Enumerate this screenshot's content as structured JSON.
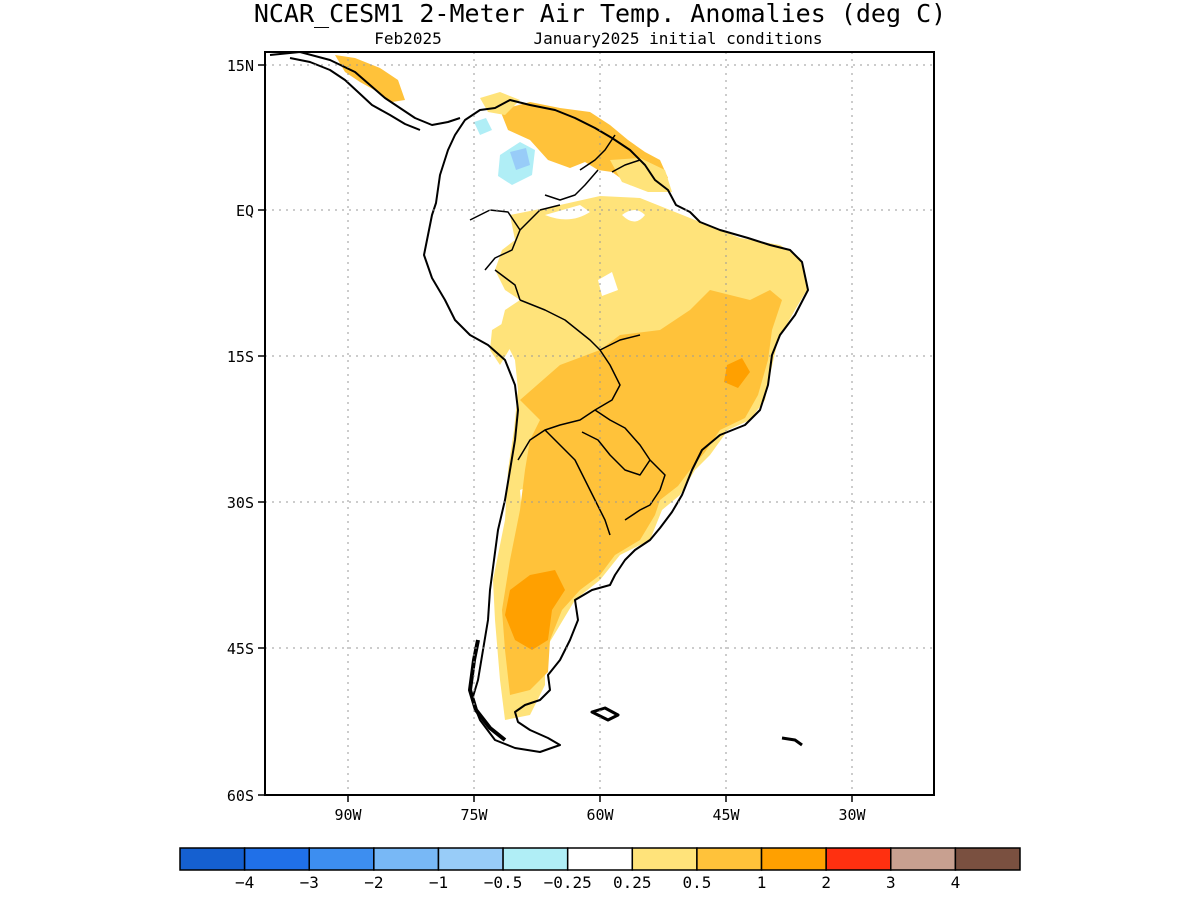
{
  "map": {
    "title": "NCAR_CESM1 2-Meter Air Temp. Anomalies (deg C)",
    "forecast_month": "Feb2025",
    "initial_conditions": "January2025 initial conditions",
    "region": "South America",
    "units": "deg C",
    "lat_ticks": [
      "15N",
      "EQ",
      "15S",
      "30S",
      "45S",
      "60S"
    ],
    "lon_ticks": [
      "90W",
      "75W",
      "60W",
      "45W",
      "30W"
    ],
    "extent": {
      "lon_min": -100,
      "lon_max": -20,
      "lat_min": -60,
      "lat_max": 16
    },
    "grid_lines": "dotted"
  },
  "colorbar": {
    "labels": [
      "−4",
      "−3",
      "−2",
      "−1",
      "−0.5",
      "−0.25",
      "0.25",
      "0.5",
      "1",
      "2",
      "3",
      "4"
    ],
    "colors": [
      "#1560d0",
      "#2070e8",
      "#3d8ef0",
      "#78b8f6",
      "#98ccf8",
      "#b0eef6",
      "#ffffff",
      "#ffe37a",
      "#ffc23a",
      "#ffa000",
      "#ff3010",
      "#c8a090",
      "#7a5040"
    ]
  }
}
